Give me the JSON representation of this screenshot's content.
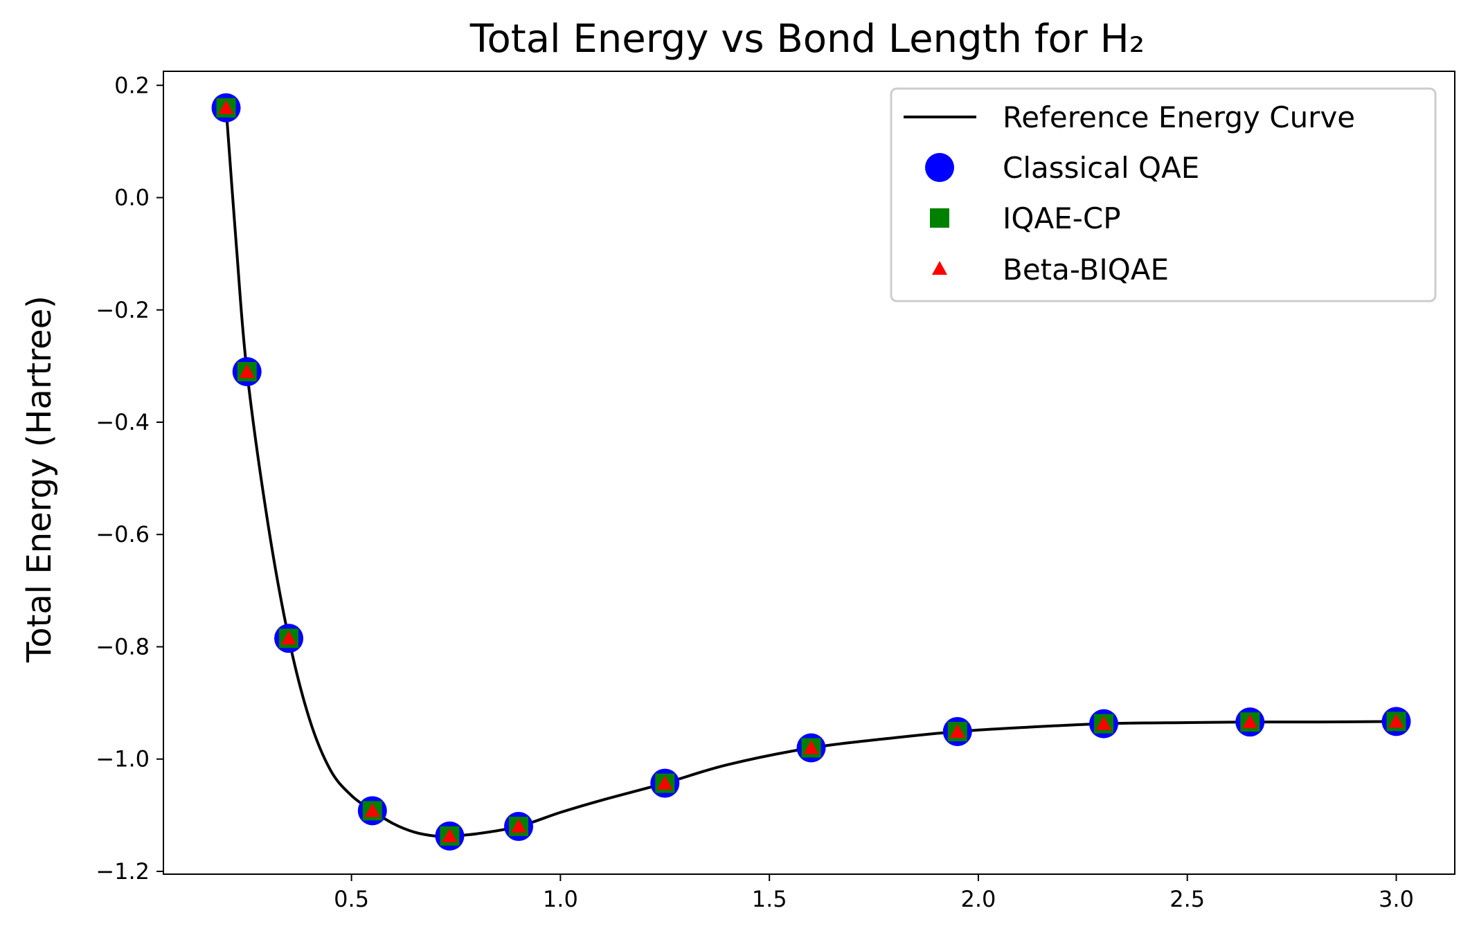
{
  "chart_data": {
    "type": "line",
    "title": "Total Energy vs Bond Length for H₂",
    "xlabel": "",
    "ylabel": "Total Energy (Hartree)",
    "xlim": [
      0.05,
      3.14
    ],
    "ylim": [
      -1.205,
      0.225
    ],
    "x_ticks": [
      0.5,
      1.0,
      1.5,
      2.0,
      2.5,
      3.0
    ],
    "x_tick_labels": [
      "0.5",
      "1.0",
      "1.5",
      "2.0",
      "2.5",
      "3.0"
    ],
    "y_ticks": [
      0.2,
      0.0,
      -0.2,
      -0.4,
      -0.6,
      -0.8,
      -1.0,
      -1.2
    ],
    "y_tick_labels": [
      "0.2",
      "0.0",
      "−0.2",
      "−0.4",
      "−0.6",
      "−0.8",
      "−1.0",
      "−1.2"
    ],
    "grid": false,
    "legend_position": "top-right",
    "reference_curve": {
      "name": "Reference Energy Curve",
      "color": "#000000",
      "x": [
        0.2,
        0.225,
        0.25,
        0.3,
        0.35,
        0.4,
        0.45,
        0.5,
        0.55,
        0.6,
        0.65,
        0.7,
        0.735,
        0.8,
        0.9,
        1.0,
        1.1,
        1.25,
        1.4,
        1.6,
        1.8,
        1.95,
        2.1,
        2.3,
        2.5,
        2.65,
        2.8,
        3.0
      ],
      "y": [
        0.16,
        -0.09,
        -0.31,
        -0.58,
        -0.785,
        -0.93,
        -1.02,
        -1.065,
        -1.092,
        -1.115,
        -1.13,
        -1.137,
        -1.137,
        -1.133,
        -1.12,
        -1.095,
        -1.073,
        -1.043,
        -1.01,
        -0.98,
        -0.962,
        -0.951,
        -0.944,
        -0.937,
        -0.935,
        -0.934,
        -0.934,
        -0.933
      ]
    },
    "categories_x": [
      0.2,
      0.25,
      0.35,
      0.55,
      0.735,
      0.9,
      1.25,
      1.6,
      1.95,
      2.3,
      2.65,
      3.0
    ],
    "series": [
      {
        "name": "Classical QAE",
        "marker": "circle",
        "color": "#0000ff",
        "values": [
          0.16,
          -0.31,
          -0.785,
          -1.092,
          -1.137,
          -1.12,
          -1.043,
          -0.98,
          -0.951,
          -0.937,
          -0.934,
          -0.933
        ]
      },
      {
        "name": "IQAE-CP",
        "marker": "square",
        "color": "#008000",
        "values": [
          0.16,
          -0.31,
          -0.785,
          -1.092,
          -1.137,
          -1.12,
          -1.043,
          -0.98,
          -0.951,
          -0.937,
          -0.934,
          -0.933
        ]
      },
      {
        "name": "Beta-BIQAE",
        "marker": "triangle",
        "color": "#ff0000",
        "values": [
          0.16,
          -0.31,
          -0.785,
          -1.092,
          -1.137,
          -1.12,
          -1.043,
          -0.98,
          -0.951,
          -0.937,
          -0.934,
          -0.933
        ]
      }
    ]
  }
}
